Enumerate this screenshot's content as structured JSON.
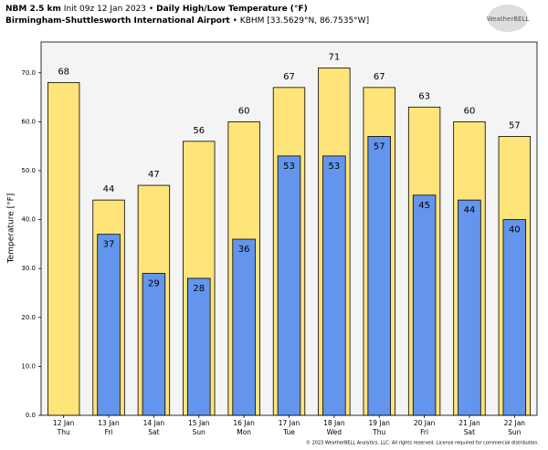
{
  "header": {
    "model": "NBM 2.5 km",
    "init": "Init 09z 12 Jan 2023",
    "separator": "•",
    "title": "Daily High/Low Temperature (°F)",
    "station": "Birmingham-Shuttlesworth International Airport",
    "station_id": "KBHM [33.5629°N, 86.7535°W]",
    "logo_text": "WeatherBELL"
  },
  "footer": "© 2023 WeatherBELL Analytics, LLC. All rights reserved. License required for commercial distribution.",
  "chart_data": {
    "type": "bar",
    "y_label": "Temperature [°F]",
    "categories": [
      "12 Jan",
      "13 Jan",
      "14 Jan",
      "15 Jan",
      "16 Jan",
      "17 Jan",
      "18 Jan",
      "19 Jan",
      "20 Jan",
      "21 Jan",
      "22 Jan"
    ],
    "weekdays": [
      "Thu",
      "Fri",
      "Sat",
      "Sun",
      "Mon",
      "Tue",
      "Wed",
      "Thu",
      "Fri",
      "Sat",
      "Sun"
    ],
    "series": [
      {
        "color": "#ffe47a",
        "values": [
          68,
          44,
          47,
          56,
          60,
          67,
          71,
          67,
          63,
          60,
          57
        ]
      },
      {
        "color": "#6495ed",
        "values": [
          null,
          37,
          29,
          28,
          36,
          53,
          53,
          57,
          45,
          44,
          40
        ]
      }
    ],
    "ylim": [
      0,
      76.3
    ],
    "yticks": [
      {
        "value": 0,
        "label": "0.0"
      },
      {
        "value": 10,
        "label": "10.0"
      },
      {
        "value": 20,
        "label": "20.0"
      },
      {
        "value": 30,
        "label": "30.0"
      },
      {
        "value": 40,
        "label": "40.0"
      },
      {
        "value": 50,
        "label": "50.0"
      },
      {
        "value": 60,
        "label": "60.0"
      },
      {
        "value": 70,
        "label": "70.0"
      }
    ]
  }
}
